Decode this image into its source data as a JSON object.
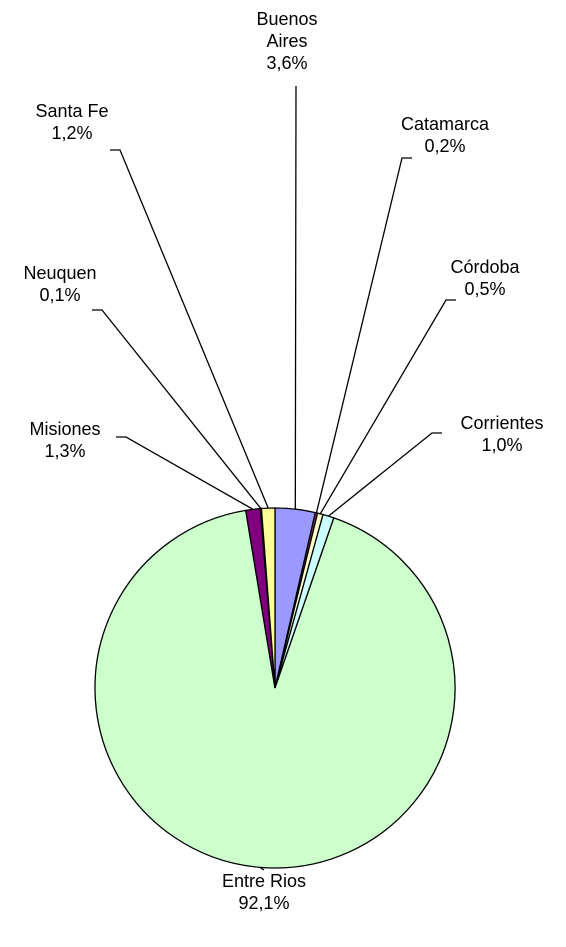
{
  "chart_data": {
    "type": "pie",
    "categories": [
      "Buenos Aires",
      "Catamarca",
      "Córdoba",
      "Corrientes",
      "Entre Rios",
      "Misiones",
      "Neuquen",
      "Santa Fe"
    ],
    "values": [
      3.6,
      0.2,
      0.5,
      1.0,
      92.1,
      1.3,
      0.1,
      1.2
    ],
    "value_labels": [
      "3,6%",
      "0,2%",
      "0,5%",
      "1,0%",
      "92,1%",
      "1,3%",
      "0,1%",
      "1,2%"
    ],
    "colors": [
      "#9999ff",
      "#993366",
      "#ffffcc",
      "#ccffff",
      "#ccffcc",
      "#800080",
      "#000080",
      "#ffff99"
    ]
  }
}
